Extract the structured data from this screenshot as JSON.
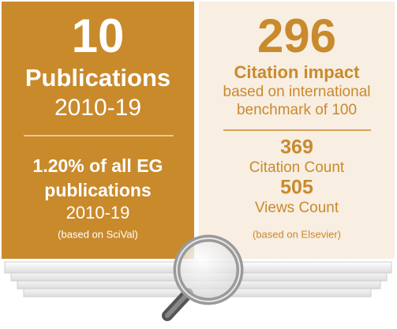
{
  "left": {
    "big": "10",
    "label": "Publications",
    "period": "2010-19",
    "share_line1": "1.20% of all EG",
    "share_line2": "publications",
    "share_period": "2010-19",
    "source": "(based on SciVal)"
  },
  "right": {
    "big": "296",
    "label": "Citation impact",
    "desc_line1": "based on international",
    "desc_line2": "benchmark of 100",
    "citations": "369",
    "citations_label": "Citation Count",
    "views": "505",
    "views_label": "Views Count",
    "source": "(based on Elsevier)"
  }
}
